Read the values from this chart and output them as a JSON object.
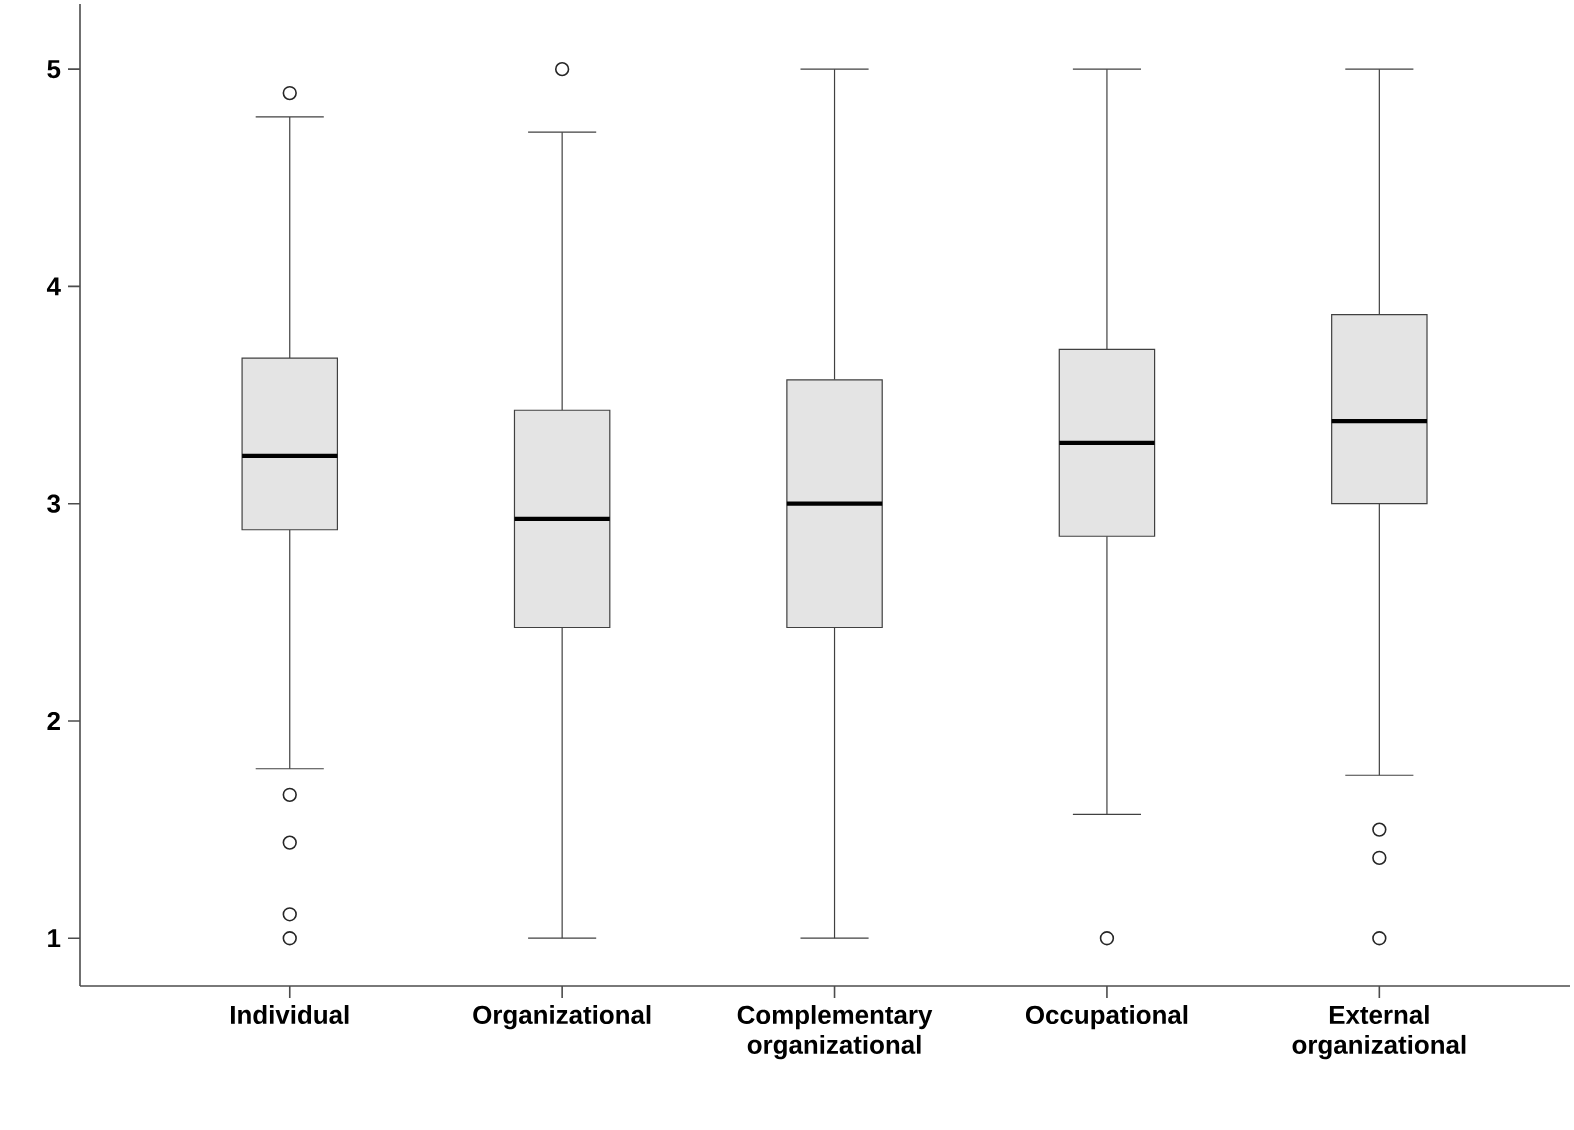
{
  "chart_data": {
    "type": "box",
    "categories": [
      "Individual",
      "Organizational",
      "Complementary organizational",
      "Occupational",
      "External organizational"
    ],
    "boxes": [
      {
        "low": 1.78,
        "q1": 2.88,
        "median": 3.22,
        "q3": 3.67,
        "high": 4.78,
        "outliers": [
          4.89,
          1.66,
          1.44,
          1.11,
          1.0
        ]
      },
      {
        "low": 1.0,
        "q1": 2.43,
        "median": 2.93,
        "q3": 3.43,
        "high": 4.71,
        "outliers": [
          5.0
        ]
      },
      {
        "low": 1.0,
        "q1": 2.43,
        "median": 3.0,
        "q3": 3.57,
        "high": 5.0
      },
      {
        "low": 1.57,
        "q1": 2.85,
        "median": 3.28,
        "q3": 3.71,
        "high": 5.0,
        "outliers": [
          1.0
        ]
      },
      {
        "low": 1.75,
        "q1": 3.0,
        "median": 3.38,
        "q3": 3.87,
        "high": 5.0,
        "outliers": [
          1.5,
          1.37,
          1.0
        ]
      }
    ],
    "color": "#e4e4e4",
    "marker": "circle",
    "ylim": [
      0.78,
      5.3
    ],
    "yticks": [
      1,
      2,
      3,
      4,
      5
    ]
  }
}
